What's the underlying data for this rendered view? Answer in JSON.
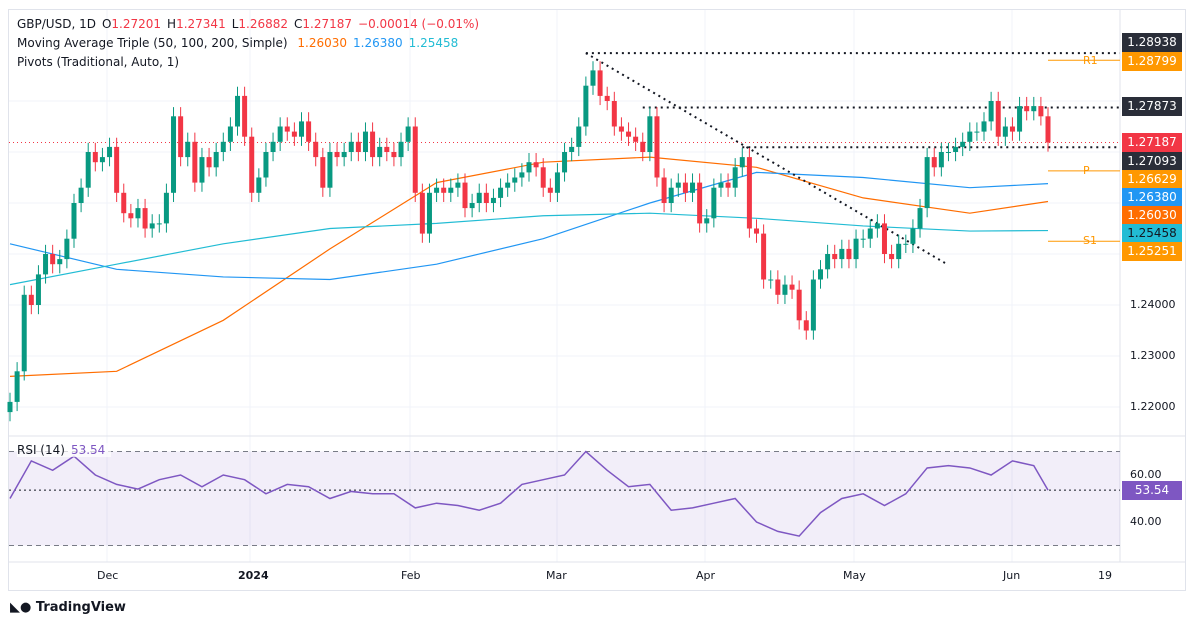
{
  "header": {
    "symbol": "GBP/USD, 1D",
    "o_label": "O",
    "open": "1.27201",
    "h_label": "H",
    "high": "1.27341",
    "l_label": "L",
    "low": "1.26882",
    "c_label": "C",
    "close": "1.27187",
    "change": "−0.00014 (−0.01%)",
    "ma_title": "Moving Average Triple (50, 100, 200, Simple)",
    "ma50": "1.26030",
    "ma100": "1.26380",
    "ma200": "1.25458",
    "pivots_title": "Pivots (Traditional, Auto, 1)"
  },
  "rsi": {
    "title": "RSI (14)",
    "value": "53.54",
    "ticks": [
      "60.00",
      "40.00"
    ]
  },
  "price_tags": {
    "p1": "1.28938",
    "r1": "1.28799",
    "p2": "1.27873",
    "last": "1.27187",
    "p3": "1.27093",
    "pivot": "1.26629",
    "ma100": "1.26380",
    "ma50": "1.26030",
    "ma200": "1.25458",
    "s1": "1.25251"
  },
  "pivot_labels": {
    "r1": "R1",
    "p": "P",
    "s1": "S1"
  },
  "price_ticks": [
    "1.24000",
    "1.23000",
    "1.22000"
  ],
  "time_ticks": [
    "Dec",
    "2024",
    "Feb",
    "Mar",
    "Apr",
    "May",
    "Jun",
    "19"
  ],
  "branding": "TradingView",
  "colors": {
    "up": "#089981",
    "down": "#f23645",
    "ma50": "#ff6d00",
    "ma100": "#2196f3",
    "ma200": "#22bcd4",
    "pivot": "#ff9800",
    "rsi": "#7e57c2"
  },
  "chart_data": {
    "type": "candlestick",
    "title": "GBP/USD, 1D",
    "ylim": [
      1.215,
      1.295
    ],
    "closes": [
      1.221,
      1.227,
      1.242,
      1.24,
      1.246,
      1.25,
      1.248,
      1.249,
      1.253,
      1.26,
      1.263,
      1.27,
      1.268,
      1.269,
      1.271,
      1.262,
      1.258,
      1.257,
      1.259,
      1.255,
      1.256,
      1.256,
      1.262,
      1.277,
      1.269,
      1.272,
      1.264,
      1.269,
      1.267,
      1.27,
      1.272,
      1.275,
      1.281,
      1.273,
      1.262,
      1.265,
      1.27,
      1.272,
      1.275,
      1.274,
      1.273,
      1.276,
      1.272,
      1.269,
      1.263,
      1.27,
      1.269,
      1.27,
      1.272,
      1.27,
      1.274,
      1.269,
      1.271,
      1.27,
      1.269,
      1.272,
      1.275,
      1.262,
      1.254,
      1.262,
      1.263,
      1.262,
      1.263,
      1.264,
      1.259,
      1.26,
      1.262,
      1.26,
      1.261,
      1.263,
      1.264,
      1.265,
      1.266,
      1.268,
      1.267,
      1.263,
      1.262,
      1.266,
      1.27,
      1.271,
      1.275,
      1.283,
      1.286,
      1.281,
      1.28,
      1.275,
      1.274,
      1.273,
      1.272,
      1.27,
      1.277,
      1.265,
      1.26,
      1.263,
      1.264,
      1.262,
      1.264,
      1.256,
      1.257,
      1.263,
      1.264,
      1.263,
      1.267,
      1.269,
      1.255,
      1.254,
      1.245,
      1.245,
      1.242,
      1.244,
      1.243,
      1.237,
      1.235,
      1.245,
      1.247,
      1.25,
      1.249,
      1.251,
      1.249,
      1.253,
      1.253,
      1.255,
      1.256,
      1.25,
      1.249,
      1.252,
      1.252,
      1.255,
      1.259,
      1.269,
      1.267,
      1.27,
      1.27,
      1.271,
      1.272,
      1.274,
      1.274,
      1.276,
      1.28,
      1.273,
      1.275,
      1.274,
      1.279,
      1.278,
      1.279,
      1.277,
      1.27187
    ],
    "ma_index": [
      0,
      15,
      30,
      45,
      60,
      75,
      90,
      105,
      120,
      135,
      146
    ],
    "ma50": [
      1.226,
      1.227,
      1.237,
      1.251,
      1.264,
      1.268,
      1.269,
      1.267,
      1.261,
      1.258,
      1.2603
    ],
    "ma100": [
      1.252,
      1.247,
      1.2455,
      1.245,
      1.248,
      1.253,
      1.26,
      1.266,
      1.265,
      1.263,
      1.2638
    ],
    "ma200": [
      1.244,
      1.248,
      1.252,
      1.255,
      1.256,
      1.2575,
      1.258,
      1.257,
      1.2555,
      1.2545,
      1.2546
    ],
    "pivots": {
      "R1": 1.28799,
      "P": 1.26629,
      "S1": 1.25251
    },
    "levels": [
      1.28938,
      1.27873,
      1.27093
    ],
    "rsi_index": [
      0,
      3,
      6,
      9,
      12,
      15,
      18,
      21,
      24,
      27,
      30,
      33,
      36,
      39,
      42,
      45,
      48,
      51,
      54,
      57,
      60,
      63,
      66,
      69,
      72,
      75,
      78,
      81,
      84,
      87,
      90,
      93,
      96,
      99,
      102,
      105,
      108,
      111,
      114,
      117,
      120,
      123,
      126,
      129,
      132,
      135,
      138,
      141,
      144,
      146
    ],
    "rsi_values": [
      50,
      66,
      62,
      68,
      60,
      56,
      54,
      58,
      60,
      55,
      60,
      58,
      52,
      56,
      55,
      50,
      53,
      52,
      52,
      46,
      48,
      47,
      45,
      48,
      56,
      58,
      60,
      70,
      62,
      55,
      56,
      45,
      46,
      48,
      50,
      40,
      36,
      34,
      44,
      50,
      52,
      47,
      52,
      63,
      64,
      63,
      60,
      66,
      64,
      53.54
    ],
    "rsi_ylim": [
      30,
      70
    ]
  }
}
